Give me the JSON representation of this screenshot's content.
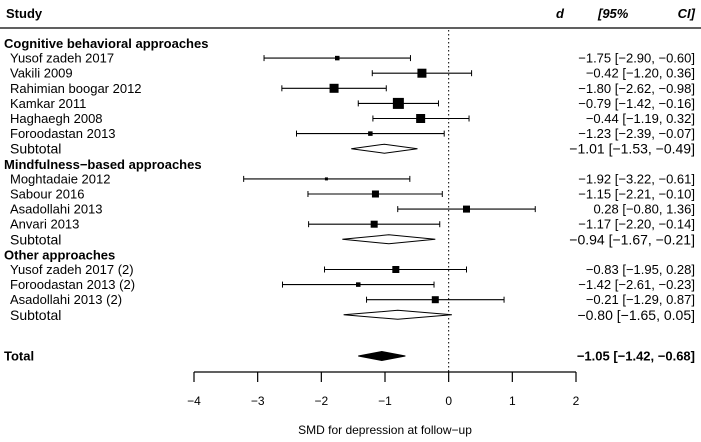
{
  "chart_data": {
    "type": "forest",
    "title": "",
    "header": {
      "study": "Study",
      "d": "d",
      "ci_open": "[95%",
      "ci_close": "CI]"
    },
    "xlabel": "SMD for depression at follow−up",
    "xlim": [
      -4,
      2
    ],
    "xticks": [
      -4,
      -3,
      -2,
      -1,
      0,
      1,
      2
    ],
    "xtick_labels": [
      "−4",
      "−3",
      "−2",
      "−1",
      "0",
      "1",
      "2"
    ],
    "reference_line": 0,
    "groups": [
      {
        "name": "Cognitive behavioral approaches",
        "studies": [
          {
            "label": "Yusof zadeh 2017",
            "d": -1.75,
            "lower": -2.9,
            "upper": -0.6,
            "text": "−1.75 [−2.90, −0.60]",
            "weight": "small"
          },
          {
            "label": "Vakili 2009",
            "d": -0.42,
            "lower": -1.2,
            "upper": 0.36,
            "text": "−0.42 [−1.20,  0.36]",
            "weight": "large"
          },
          {
            "label": "Rahimian boogar 2012",
            "d": -1.8,
            "lower": -2.62,
            "upper": -0.98,
            "text": "−1.80 [−2.62, −0.98]",
            "weight": "large"
          },
          {
            "label": "Kamkar 2011",
            "d": -0.79,
            "lower": -1.42,
            "upper": -0.16,
            "text": "−0.79 [−1.42, −0.16]",
            "weight": "xlarge"
          },
          {
            "label": "Haghaegh 2008",
            "d": -0.44,
            "lower": -1.19,
            "upper": 0.32,
            "text": "−0.44 [−1.19,  0.32]",
            "weight": "large"
          },
          {
            "label": "Foroodastan 2013",
            "d": -1.23,
            "lower": -2.39,
            "upper": -0.07,
            "text": "−1.23 [−2.39, −0.07]",
            "weight": "small"
          }
        ],
        "subtotal": {
          "label": "Subtotal",
          "d": -1.01,
          "lower": -1.53,
          "upper": -0.49,
          "text": "−1.01 [−1.53, −0.49]"
        }
      },
      {
        "name": "Mindfulness−based approaches",
        "studies": [
          {
            "label": "Moghtadaie 2012",
            "d": -1.92,
            "lower": -3.22,
            "upper": -0.61,
            "text": "−1.92 [−3.22, −0.61]",
            "weight": "tiny"
          },
          {
            "label": "Sabour 2016",
            "d": -1.15,
            "lower": -2.21,
            "upper": -0.1,
            "text": "−1.15 [−2.21, −0.10]",
            "weight": "medium"
          },
          {
            "label": "Asadollahi 2013",
            "d": 0.28,
            "lower": -0.8,
            "upper": 1.36,
            "text": "0.28 [−0.80,  1.36]",
            "weight": "medium"
          },
          {
            "label": "Anvari 2013",
            "d": -1.17,
            "lower": -2.2,
            "upper": -0.14,
            "text": "−1.17 [−2.20, −0.14]",
            "weight": "medium"
          }
        ],
        "subtotal": {
          "label": "Subtotal",
          "d": -0.94,
          "lower": -1.67,
          "upper": -0.21,
          "text": "−0.94 [−1.67, −0.21]"
        }
      },
      {
        "name": "Other approaches",
        "studies": [
          {
            "label": "Yusof zadeh 2017 (2)",
            "d": -0.83,
            "lower": -1.95,
            "upper": 0.28,
            "text": "−0.83 [−1.95,  0.28]",
            "weight": "medium"
          },
          {
            "label": "Foroodastan 2013 (2)",
            "d": -1.42,
            "lower": -2.61,
            "upper": -0.23,
            "text": "−1.42 [−2.61, −0.23]",
            "weight": "small"
          },
          {
            "label": "Asadollahi 2013 (2)",
            "d": -0.21,
            "lower": -1.29,
            "upper": 0.87,
            "text": "−0.21 [−1.29,  0.87]",
            "weight": "medium"
          }
        ],
        "subtotal": {
          "label": "Subtotal",
          "d": -0.8,
          "lower": -1.65,
          "upper": 0.05,
          "text": "−0.80 [−1.65, 0.05]"
        }
      }
    ],
    "total": {
      "label": "Total",
      "d": -1.05,
      "lower": -1.42,
      "upper": -0.68,
      "text": "−1.05 [−1.42, −0.68]"
    }
  }
}
